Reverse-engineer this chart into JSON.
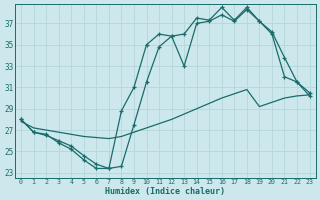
{
  "xlabel": "Humidex (Indice chaleur)",
  "bg_color": "#cde8ec",
  "line_color": "#1a6b6b",
  "grid_color": "#b8d8dc",
  "xlim": [
    -0.5,
    23.5
  ],
  "ylim": [
    22.5,
    38.8
  ],
  "yticks": [
    23,
    25,
    27,
    29,
    31,
    33,
    35,
    37
  ],
  "xticks": [
    0,
    1,
    2,
    3,
    4,
    5,
    6,
    7,
    8,
    9,
    10,
    11,
    12,
    13,
    14,
    15,
    16,
    17,
    18,
    19,
    20,
    21,
    22,
    23
  ],
  "line_upper_x": [
    0,
    1,
    2,
    3,
    4,
    5,
    6,
    7,
    8,
    9,
    10,
    11,
    12,
    13,
    14,
    15,
    16,
    17,
    18,
    19,
    20,
    21,
    22,
    23
  ],
  "line_upper_y": [
    28.0,
    26.8,
    26.6,
    25.8,
    25.2,
    24.2,
    23.4,
    23.4,
    28.8,
    31.0,
    35.0,
    36.0,
    35.8,
    33.0,
    37.0,
    37.2,
    37.8,
    37.2,
    38.3,
    37.2,
    36.2,
    33.8,
    31.5,
    30.2
  ],
  "line_lower_x": [
    0,
    1,
    2,
    3,
    4,
    5,
    6,
    7,
    8,
    9,
    10,
    11,
    12,
    13,
    14,
    15,
    16,
    17,
    18,
    19,
    20,
    21,
    22,
    23
  ],
  "line_lower_y": [
    28.0,
    26.8,
    26.5,
    26.0,
    25.5,
    24.6,
    23.8,
    23.4,
    23.6,
    27.5,
    31.5,
    34.8,
    35.8,
    36.0,
    37.5,
    37.3,
    38.5,
    37.3,
    38.5,
    37.2,
    36.0,
    32.0,
    31.5,
    30.5
  ],
  "line_avg_x": [
    0,
    1,
    2,
    3,
    4,
    5,
    6,
    7,
    8,
    9,
    10,
    11,
    12,
    13,
    14,
    15,
    16,
    17,
    18,
    19,
    20,
    21,
    22,
    23
  ],
  "line_avg_y": [
    27.8,
    27.2,
    27.0,
    26.8,
    26.6,
    26.4,
    26.3,
    26.2,
    26.4,
    26.8,
    27.2,
    27.6,
    28.0,
    28.5,
    29.0,
    29.5,
    30.0,
    30.4,
    30.8,
    29.2,
    29.6,
    30.0,
    30.2,
    30.3
  ]
}
